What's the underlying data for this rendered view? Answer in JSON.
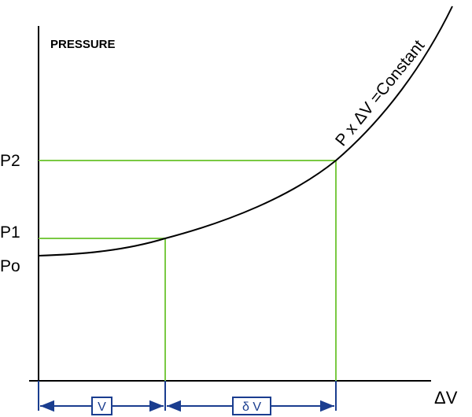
{
  "diagram": {
    "y_axis_label": "PRESSURE",
    "x_axis_label": "ΔV",
    "curve_label": "P  x ΔV =Constant",
    "levels": {
      "p2": "P2",
      "p1": "P1",
      "po": "Po"
    },
    "dimensions": {
      "v": "V",
      "delta_v": "δ V"
    },
    "colors": {
      "axes": "#000000",
      "curve": "#000000",
      "guides": "#7ac943",
      "dimension": "#1a3d8f"
    }
  }
}
